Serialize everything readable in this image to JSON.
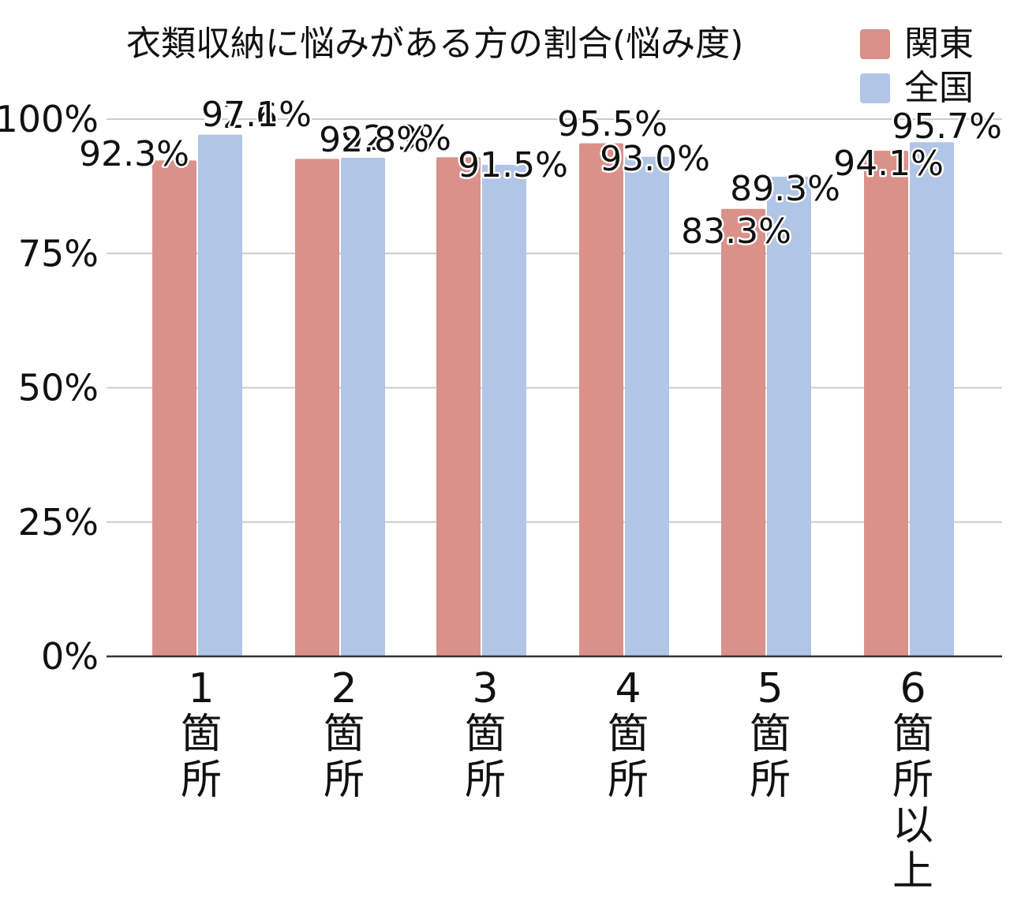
{
  "chart_data": {
    "type": "bar",
    "title": "衣類収納に悩みがある方の割合(悩み度)",
    "categories": [
      [
        "1",
        "箇",
        "所"
      ],
      [
        "2",
        "箇",
        "所"
      ],
      [
        "3",
        "箇",
        "所"
      ],
      [
        "4",
        "箇",
        "所"
      ],
      [
        "5",
        "箇",
        "所"
      ],
      [
        "6",
        "箇",
        "所",
        "以",
        "上"
      ]
    ],
    "series": [
      {
        "name": "関東",
        "color": "#d9918a",
        "values": [
          92.3,
          92.6,
          92.9,
          95.5,
          83.3,
          94.1
        ],
        "labels": [
          "92.3%",
          "92.6%",
          "92.9%",
          "95.5%",
          "83.3%",
          "94.1%"
        ]
      },
      {
        "name": "全国",
        "color": "#b1c5e7",
        "values": [
          97.1,
          92.8,
          91.5,
          93.0,
          89.3,
          95.7
        ],
        "labels": [
          "97.1%",
          "92.8%",
          "91.5%",
          "93.0%",
          "89.3%",
          "95.7%"
        ]
      }
    ],
    "ylim": [
      0,
      100
    ],
    "yticks": [
      0,
      25,
      50,
      75,
      100
    ],
    "ytick_labels": [
      "0%",
      "25%",
      "50%",
      "75%",
      "100%"
    ],
    "xlabel": "",
    "ylabel": "",
    "grid": true,
    "legend_position": "top-right"
  }
}
